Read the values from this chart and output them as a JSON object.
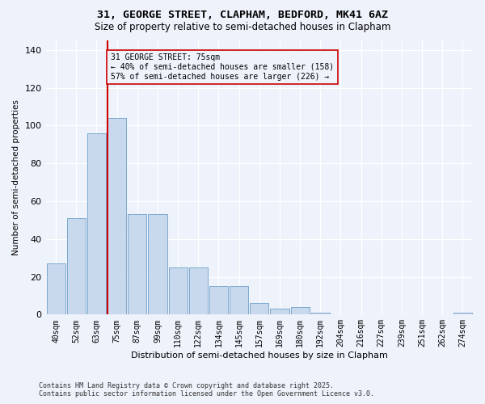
{
  "title1": "31, GEORGE STREET, CLAPHAM, BEDFORD, MK41 6AZ",
  "title2": "Size of property relative to semi-detached houses in Clapham",
  "xlabel": "Distribution of semi-detached houses by size in Clapham",
  "ylabel": "Number of semi-detached properties",
  "footer1": "Contains HM Land Registry data © Crown copyright and database right 2025.",
  "footer2": "Contains public sector information licensed under the Open Government Licence v3.0.",
  "annotation_line1": "31 GEORGE STREET: 75sqm",
  "annotation_line2": "← 40% of semi-detached houses are smaller (158)",
  "annotation_line3": "57% of semi-detached houses are larger (226) →",
  "bar_color": "#c9d9ed",
  "bar_edge_color": "#6b9fc8",
  "vline_color": "#cc0000",
  "background_color": "#eef2fb",
  "grid_color": "#ffffff",
  "categories": [
    "40sqm",
    "52sqm",
    "63sqm",
    "75sqm",
    "87sqm",
    "99sqm",
    "110sqm",
    "122sqm",
    "134sqm",
    "145sqm",
    "157sqm",
    "169sqm",
    "180sqm",
    "192sqm",
    "204sqm",
    "216sqm",
    "227sqm",
    "239sqm",
    "251sqm",
    "262sqm",
    "274sqm"
  ],
  "values": [
    27,
    51,
    96,
    104,
    53,
    53,
    25,
    25,
    15,
    15,
    6,
    3,
    4,
    1,
    0,
    0,
    0,
    0,
    0,
    0,
    1
  ],
  "ylim": [
    0,
    145
  ],
  "yticks": [
    0,
    20,
    40,
    60,
    80,
    100,
    120,
    140
  ],
  "title1_fontsize": 9.5,
  "title2_fontsize": 8.5,
  "xlabel_fontsize": 8,
  "ylabel_fontsize": 7.5,
  "tick_fontsize": 7,
  "annotation_fontsize": 7,
  "footer_fontsize": 6
}
